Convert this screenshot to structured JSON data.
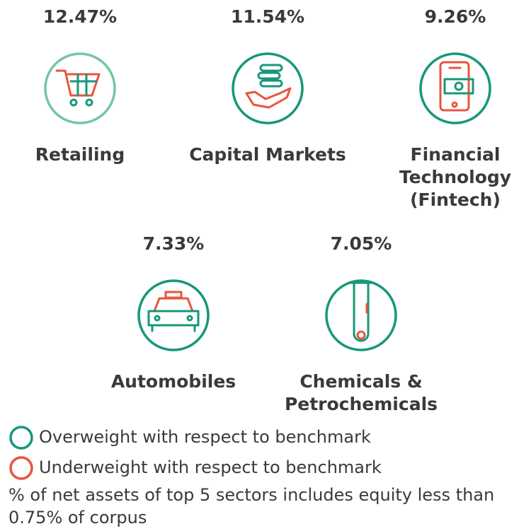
{
  "sectors": [
    {
      "percent": "12.47%",
      "label": [
        "Retailing"
      ],
      "circle_color": "#74c6a4"
    },
    {
      "percent": "11.54%",
      "label": [
        "Capital Markets"
      ],
      "circle_color": "#17977a"
    },
    {
      "percent": "9.26%",
      "label": [
        "Financial",
        "Technology",
        "(Fintech)"
      ],
      "circle_color": "#17977a"
    },
    {
      "percent": "7.33%",
      "label": [
        "Automobiles"
      ],
      "circle_color": "#17977a"
    },
    {
      "percent": "7.05%",
      "label": [
        "Chemicals &",
        "Petrochemicals"
      ],
      "circle_color": "#17977a"
    }
  ],
  "legend": [
    {
      "text": "Overweight with respect to benchmark",
      "color": "#17977a"
    },
    {
      "text": "Underweight with respect to benchmark",
      "color": "#e8553a"
    }
  ],
  "footnote": [
    "% of net assets of top 5 sectors includes equity less than",
    "0.75% of corpus"
  ]
}
